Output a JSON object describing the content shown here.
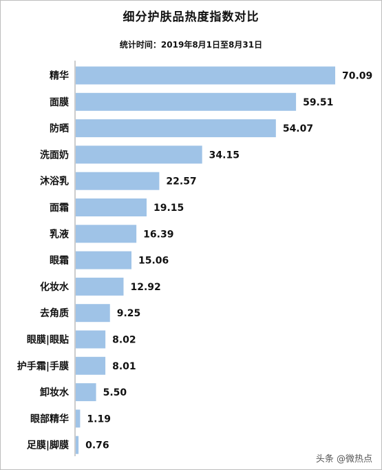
{
  "chart_data": {
    "type": "bar",
    "orientation": "horizontal",
    "title": "细分护肤品热度指数对比",
    "subtitle": "统计时间：2019年8月1日至8月31日",
    "categories": [
      "精华",
      "面膜",
      "防晒",
      "洗面奶",
      "沐浴乳",
      "面霜",
      "乳液",
      "眼霜",
      "化妆水",
      "去角质",
      "眼膜|眼贴",
      "护手霜|手膜",
      "卸妆水",
      "眼部精华",
      "足膜|脚膜"
    ],
    "values": [
      70.09,
      59.51,
      54.07,
      34.15,
      22.57,
      19.15,
      16.39,
      15.06,
      12.92,
      9.25,
      8.02,
      8.01,
      5.5,
      1.19,
      0.76
    ],
    "value_labels": [
      "70.09",
      "59.51",
      "54.07",
      "34.15",
      "22.57",
      "19.15",
      "16.39",
      "15.06",
      "12.92",
      "9.25",
      "8.02",
      "8.01",
      "5.50",
      "1.19",
      "0.76"
    ],
    "xlim": [
      0,
      70.09
    ],
    "grid": false,
    "bar_color": "#9fc3e7"
  },
  "watermark": "头条 @微热点"
}
